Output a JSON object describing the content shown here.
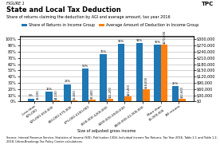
{
  "chart_data": {
    "type": "bar",
    "title": "State and Local Tax Deduction",
    "subtitle": "Share of returns claiming the deduction by AGI and average amount, tax year 2016",
    "xlabel": "Size of adjusted gross income",
    "annotations": [
      "FIGURE 1",
      "Source: Internal Revenue Service, Statistics of Income (SOI), Publication 1304, Individual Income Tax Returns, Tax Year 2016, Table 2.1 and Table 1.2, 2018; Urban-Brookings Tax Policy Center calculations.",
      "TPC"
    ],
    "categories": [
      "Less than\n$25,000",
      "$25,000-$50,000",
      "$50,000-$75,000",
      "$75,000-$100,000",
      "$100,000-$200,000",
      "$200,000-$500,000",
      "$500,000-$1,000,000",
      "More than\n$1,000,000",
      "All returns"
    ],
    "series": [
      {
        "name": "Share of Returns in Income Group",
        "values": [
          5,
          16,
          28,
          53,
          76,
          93,
          94,
          92,
          25
        ],
        "value_labels": [
          "5%",
          "16%",
          "28%",
          "53%",
          "76%",
          "93%",
          "94%",
          "92%",
          "25%"
        ]
      },
      {
        "name": "Average Amount of Deduction in Income Group",
        "axis": "y2",
        "values": [
          3100,
          4100,
          5600,
          7400,
          11200,
          23200,
          58000,
          272900,
          12600
        ],
        "value_labels": [
          "$3,100",
          "$4,100",
          "$5,600",
          "$7,400",
          "$11,200",
          "$23,200",
          "$58,000",
          "$272,900",
          "$12,600"
        ]
      }
    ],
    "ylim": [
      0,
      105
    ],
    "yticks": [
      {
        "value": 0,
        "label": "0%"
      },
      {
        "value": 10,
        "label": "10%"
      },
      {
        "value": 20,
        "label": "20%"
      },
      {
        "value": 30,
        "label": "30%"
      },
      {
        "value": 40,
        "label": "40%"
      },
      {
        "value": 50,
        "label": "50%"
      },
      {
        "value": 60,
        "label": "60%"
      },
      {
        "value": 70,
        "label": "70%"
      },
      {
        "value": 80,
        "label": "80%"
      },
      {
        "value": 90,
        "label": "90%"
      },
      {
        "value": 100,
        "label": "100%"
      }
    ],
    "y2lim": [
      0,
      315000
    ],
    "y2ticks": [
      {
        "value": 0,
        "label": "$0"
      },
      {
        "value": 30000,
        "label": "$30,000"
      },
      {
        "value": 60000,
        "label": "$60,000"
      },
      {
        "value": 90000,
        "label": "$90,000"
      },
      {
        "value": 120000,
        "label": "$120,000"
      },
      {
        "value": 150000,
        "label": "$150,000"
      },
      {
        "value": 180000,
        "label": "$180,000"
      },
      {
        "value": 210000,
        "label": "$210,000"
      },
      {
        "value": 240000,
        "label": "$240,000"
      },
      {
        "value": 270000,
        "label": "$270,000"
      },
      {
        "value": 300000,
        "label": "$300,000"
      }
    ],
    "grid": true,
    "legend": "upper center",
    "data_labels": true
  }
}
